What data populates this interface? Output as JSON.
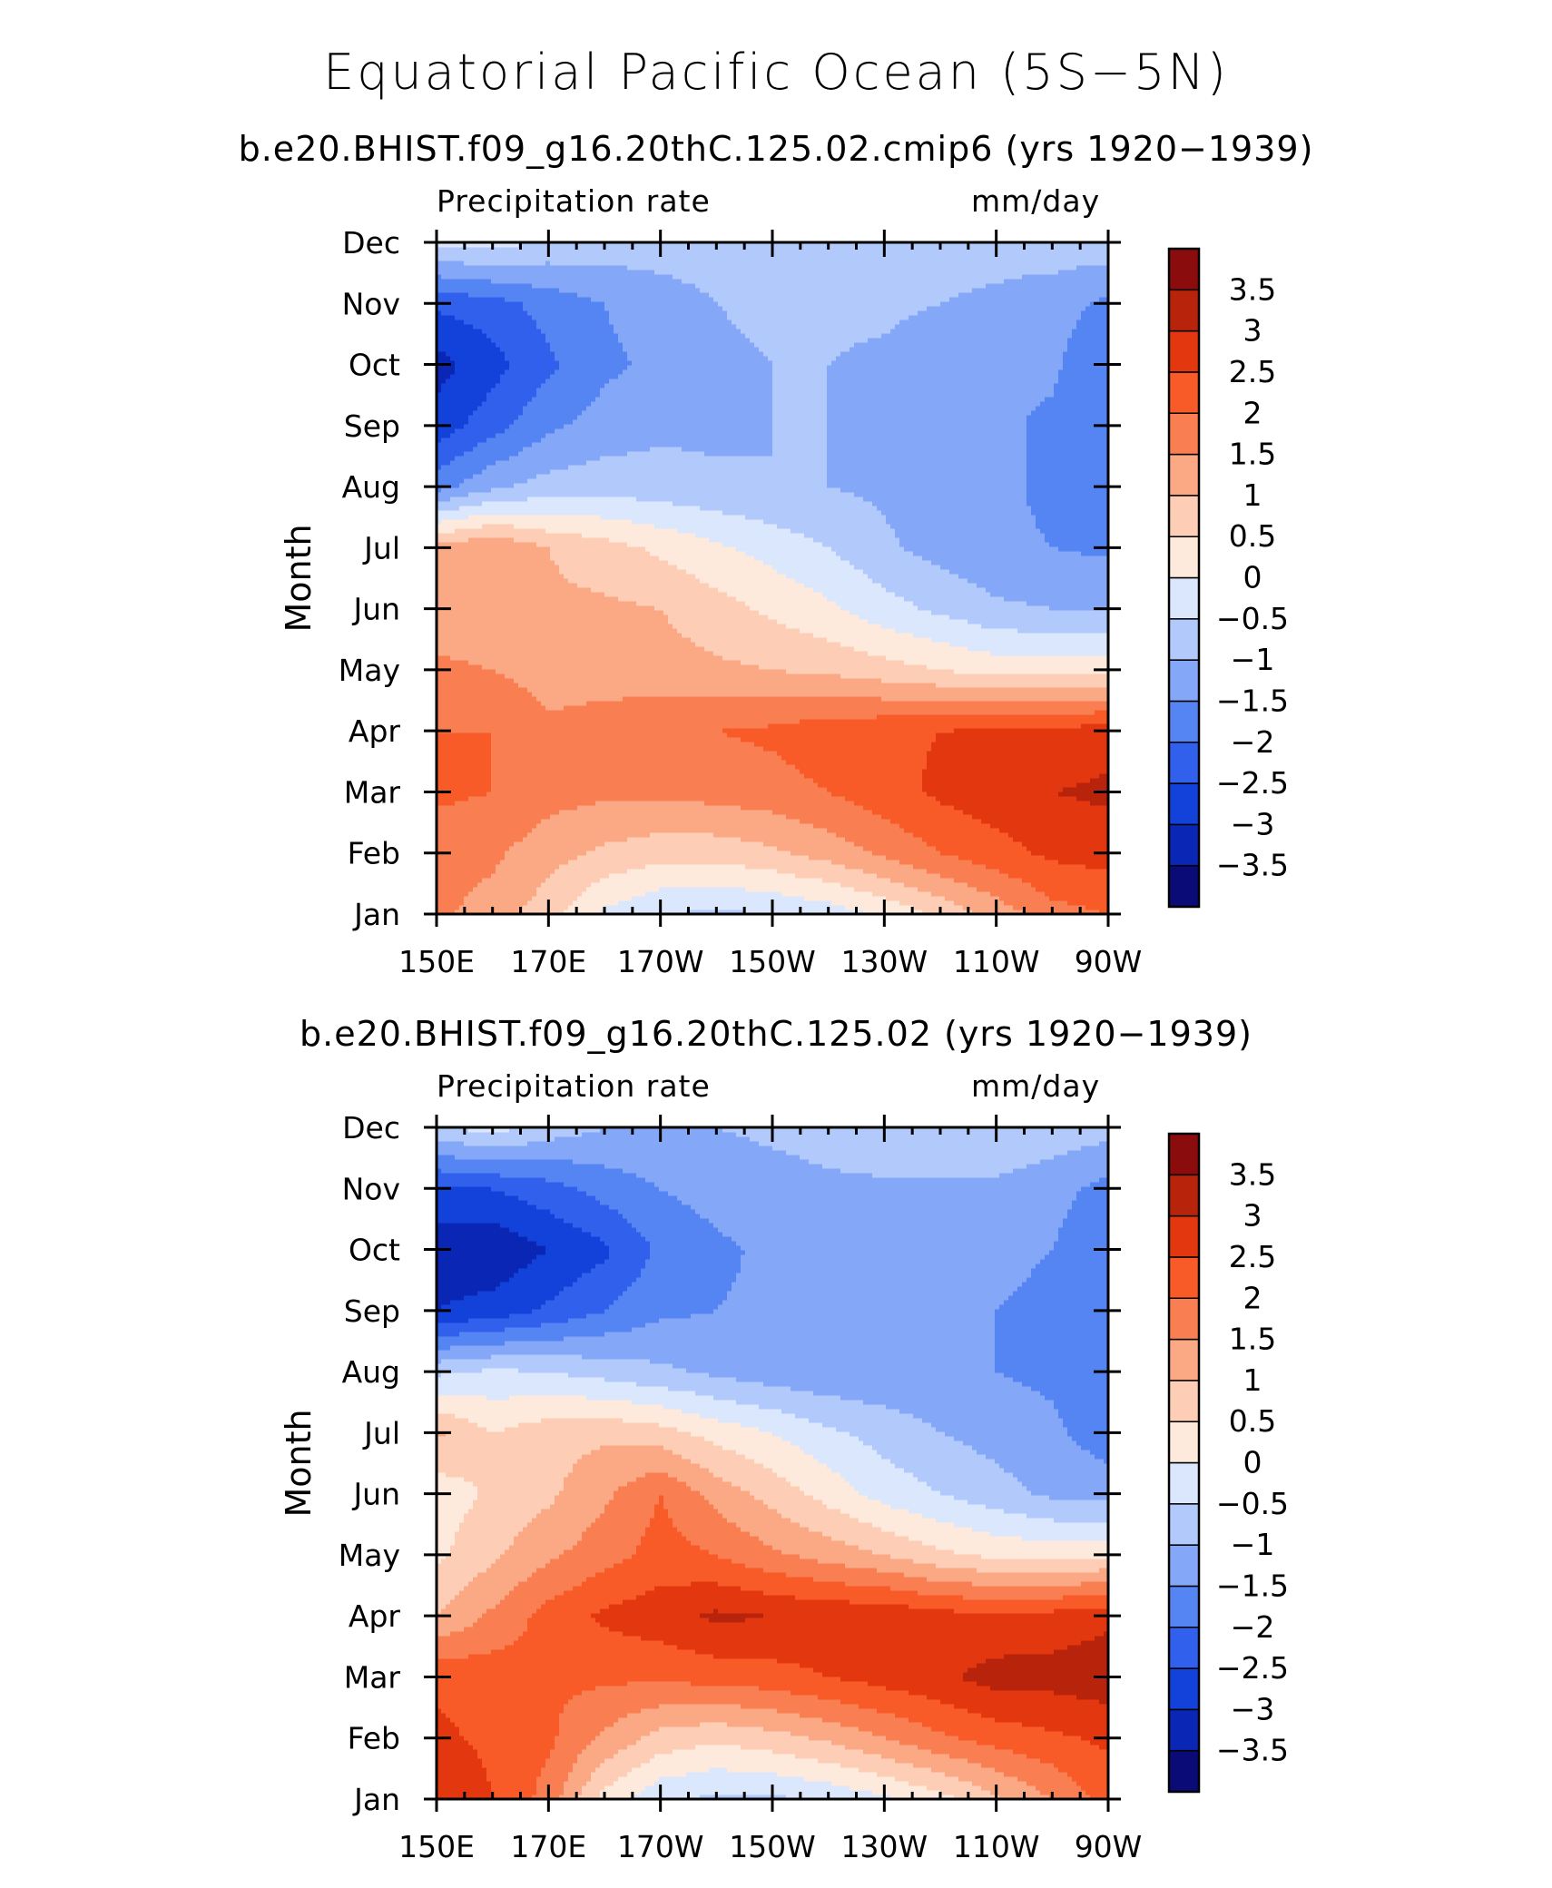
{
  "title": "Equatorial Pacific Ocean (5S−5N)",
  "colors": {
    "levels": [
      "#0b0b78",
      "#0a26b4",
      "#1342db",
      "#3161ec",
      "#5585f3",
      "#84a7f8",
      "#b2c9fb",
      "#dbe7fc",
      "#fdeadc",
      "#fdcdb5",
      "#fba985",
      "#f97f53",
      "#f85b28",
      "#e3380f",
      "#b8230b",
      "#8a0c0c"
    ],
    "frame": "#000000"
  },
  "chart_data": [
    {
      "type": "heatmap",
      "title": "b.e20.BHIST.f09_g16.20thC.125.02.cmip6 (yrs 1920−1939)",
      "field": "Precipitation rate",
      "units": "mm/day",
      "ylabel": "Month",
      "x_ticks": [
        "150E",
        "170E",
        "170W",
        "150W",
        "130W",
        "110W",
        "90W"
      ],
      "x_range_deg_east": [
        150,
        270
      ],
      "y_ticks": [
        "Jan",
        "Feb",
        "Mar",
        "Apr",
        "May",
        "Jun",
        "Jul",
        "Aug",
        "Sep",
        "Oct",
        "Nov",
        "Dec"
      ],
      "colorbar_labels": [
        "−3.5",
        "−3",
        "−2.5",
        "−2",
        "−1.5",
        "−1",
        "−0.5",
        "0",
        "0.5",
        "1",
        "1.5",
        "2",
        "2.5",
        "3",
        "3.5"
      ],
      "lon": [
        150,
        160,
        170,
        180,
        190,
        200,
        210,
        220,
        230,
        240,
        250,
        260,
        270
      ],
      "months": [
        "Jan",
        "Feb",
        "Mar",
        "Apr",
        "May",
        "Jun",
        "Jul",
        "Aug",
        "Sep",
        "Oct",
        "Nov",
        "Dec"
      ],
      "values": [
        [
          1.6,
          1.3,
          0.7,
          -0.1,
          -0.5,
          -0.6,
          -0.5,
          -0.3,
          0.1,
          0.6,
          1.2,
          1.8,
          2.0
        ],
        [
          1.7,
          1.6,
          1.2,
          0.9,
          0.7,
          0.7,
          0.9,
          1.2,
          1.6,
          2.0,
          2.3,
          2.6,
          2.7
        ],
        [
          2.1,
          2.0,
          1.7,
          1.6,
          1.6,
          1.7,
          1.8,
          2.0,
          2.3,
          2.6,
          2.8,
          3.0,
          3.1
        ],
        [
          2.0,
          2.0,
          1.6,
          1.7,
          1.9,
          2.0,
          2.1,
          2.3,
          2.4,
          2.5,
          2.6,
          2.6,
          2.8
        ],
        [
          1.6,
          1.5,
          1.3,
          1.3,
          1.2,
          1.1,
          1.0,
          0.9,
          0.7,
          0.5,
          0.3,
          0.3,
          0.3
        ],
        [
          1.2,
          1.2,
          1.1,
          1.1,
          1.0,
          0.7,
          0.4,
          0.1,
          -0.3,
          -0.6,
          -0.9,
          -1.0,
          -1.0
        ],
        [
          1.2,
          1.5,
          1.0,
          0.7,
          0.4,
          0.1,
          -0.2,
          -0.5,
          -0.9,
          -1.2,
          -1.4,
          -1.5,
          -1.6
        ],
        [
          -1.7,
          -1.1,
          -0.8,
          -0.7,
          -0.8,
          -0.9,
          -1.0,
          -1.0,
          -1.1,
          -1.2,
          -1.4,
          -1.6,
          -1.8
        ],
        [
          -2.8,
          -2.2,
          -1.6,
          -1.3,
          -1.1,
          -1.1,
          -1.0,
          -1.0,
          -1.1,
          -1.3,
          -1.4,
          -1.6,
          -2.0
        ],
        [
          -3.2,
          -2.7,
          -2.1,
          -1.6,
          -1.4,
          -1.1,
          -1.0,
          -1.0,
          -1.1,
          -1.3,
          -1.4,
          -1.4,
          -2.0
        ],
        [
          -2.4,
          -2.2,
          -1.8,
          -1.5,
          -1.2,
          -1.0,
          -0.9,
          -0.9,
          -0.9,
          -1.0,
          -1.1,
          -1.3,
          -1.6
        ],
        [
          -0.4,
          -0.3,
          -0.6,
          -0.7,
          -0.8,
          -0.8,
          -0.8,
          -0.8,
          -0.8,
          -0.8,
          -0.8,
          -0.7,
          -0.7
        ]
      ]
    },
    {
      "type": "heatmap",
      "title": "b.e20.BHIST.f09_g16.20thC.125.02 (yrs 1920−1939)",
      "field": "Precipitation rate",
      "units": "mm/day",
      "ylabel": "Month",
      "x_ticks": [
        "150E",
        "170E",
        "170W",
        "150W",
        "130W",
        "110W",
        "90W"
      ],
      "x_range_deg_east": [
        150,
        270
      ],
      "y_ticks": [
        "Jan",
        "Feb",
        "Mar",
        "Apr",
        "May",
        "Jun",
        "Jul",
        "Aug",
        "Sep",
        "Oct",
        "Nov",
        "Dec"
      ],
      "colorbar_labels": [
        "−3.5",
        "−3",
        "−2.5",
        "−2",
        "−1.5",
        "−1",
        "−0.5",
        "0",
        "0.5",
        "1",
        "1.5",
        "2",
        "2.5",
        "3",
        "3.5"
      ],
      "lon": [
        150,
        160,
        170,
        180,
        190,
        200,
        210,
        220,
        230,
        240,
        250,
        260,
        270
      ],
      "months": [
        "Jan",
        "Feb",
        "Mar",
        "Apr",
        "May",
        "Jun",
        "Jul",
        "Aug",
        "Sep",
        "Oct",
        "Nov",
        "Dec"
      ],
      "values": [
        [
          3.0,
          2.5,
          1.8,
          0.3,
          -0.4,
          -0.6,
          -0.6,
          -0.4,
          -0.1,
          0.3,
          0.9,
          1.5,
          2.2
        ],
        [
          2.6,
          2.4,
          2.1,
          1.4,
          0.8,
          0.6,
          0.8,
          1.1,
          1.5,
          1.9,
          2.2,
          2.4,
          2.6
        ],
        [
          2.4,
          2.3,
          2.1,
          2.1,
          2.1,
          2.2,
          2.3,
          2.5,
          2.7,
          2.9,
          3.2,
          3.2,
          3.3
        ],
        [
          1.0,
          1.6,
          2.2,
          2.6,
          2.8,
          3.1,
          3.0,
          2.9,
          2.9,
          2.7,
          2.6,
          2.7,
          2.9
        ],
        [
          0.4,
          0.9,
          1.4,
          1.8,
          2.2,
          2.0,
          1.6,
          1.3,
          1.0,
          0.6,
          0.4,
          0.3,
          0.4
        ],
        [
          0.2,
          0.6,
          0.9,
          1.4,
          2.0,
          1.3,
          0.8,
          0.3,
          -0.2,
          -0.5,
          -0.8,
          -1.1,
          -1.2
        ],
        [
          1.1,
          0.5,
          0.8,
          0.9,
          0.7,
          0.3,
          0.0,
          -0.4,
          -0.7,
          -1.0,
          -1.2,
          -1.4,
          -1.8
        ],
        [
          -0.6,
          -0.4,
          -0.5,
          -0.7,
          -0.9,
          -1.1,
          -1.3,
          -1.4,
          -1.4,
          -1.4,
          -1.5,
          -1.6,
          -1.7
        ],
        [
          -3.0,
          -2.8,
          -2.4,
          -2.0,
          -1.6,
          -1.5,
          -1.4,
          -1.4,
          -1.4,
          -1.4,
          -1.5,
          -1.6,
          -1.9
        ],
        [
          -3.3,
          -3.4,
          -3.0,
          -2.6,
          -1.9,
          -1.6,
          -1.4,
          -1.4,
          -1.4,
          -1.4,
          -1.4,
          -1.5,
          -2.0
        ],
        [
          -2.6,
          -2.5,
          -2.2,
          -1.8,
          -1.5,
          -1.3,
          -1.2,
          -1.1,
          -1.1,
          -1.1,
          -1.1,
          -1.3,
          -1.7
        ],
        [
          -0.6,
          -0.3,
          -0.7,
          -1.0,
          -1.0,
          -1.0,
          -0.9,
          -0.8,
          -0.6,
          -0.6,
          -0.6,
          -0.7,
          -0.8
        ]
      ]
    }
  ]
}
